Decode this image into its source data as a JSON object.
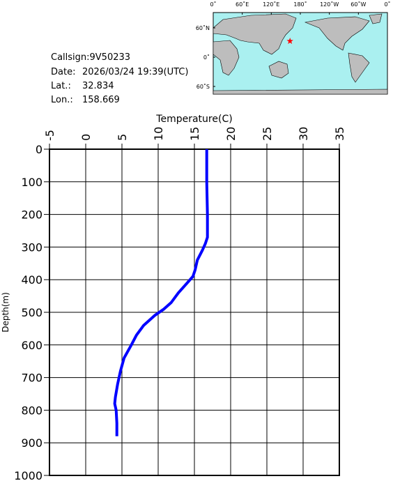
{
  "info": {
    "callsign": "Callsign:9V50233",
    "date_label": "Date:",
    "date": "2026/03/24 19:39(UTC)",
    "lat_label": "Lat.:",
    "lat": 32.834,
    "lon_label": "Lon.:",
    "lon": 158.669
  },
  "map": {
    "lon_ticks": [
      {
        "value": 0,
        "label": "0˚"
      },
      {
        "value": 60,
        "label": "60˚E"
      },
      {
        "value": 120,
        "label": "120˚E"
      },
      {
        "value": 180,
        "label": "180˚"
      },
      {
        "value": 240,
        "label": "120˚W"
      },
      {
        "value": 300,
        "label": "60˚W"
      },
      {
        "value": 360,
        "label": "0˚"
      }
    ],
    "lat_ticks": [
      {
        "value": 60,
        "label": "60˚N"
      },
      {
        "value": 0,
        "label": "0˚"
      },
      {
        "value": -60,
        "label": "60˚S"
      }
    ],
    "marker_color": "#ff0000"
  },
  "chart_data": {
    "type": "line",
    "x_label": "Temperature(C)",
    "y_label": "Depth(m)",
    "x": [
      16.7,
      16.7,
      16.8,
      16.8,
      16.5,
      16.1,
      15.4,
      15.1,
      14.8,
      14.0,
      12.8,
      11.8,
      10.8,
      9.5,
      8.0,
      7.0,
      6.3,
      5.3,
      4.8,
      4.4,
      4.1,
      4.0,
      4.2,
      4.3,
      4.3
    ],
    "values": [
      0,
      100,
      200,
      270,
      290,
      310,
      340,
      370,
      390,
      410,
      440,
      470,
      490,
      510,
      540,
      570,
      600,
      640,
      680,
      720,
      760,
      780,
      800,
      840,
      880
    ],
    "color": "#0000ff",
    "xlim": [
      -5,
      35
    ],
    "xticks": [
      -5,
      0,
      5,
      10,
      15,
      20,
      25,
      30,
      35
    ],
    "ylim": [
      0,
      1000
    ],
    "yticks": [
      0,
      100,
      200,
      300,
      400,
      500,
      600,
      700,
      800,
      900,
      1000
    ],
    "y_reversed": true,
    "grid": true
  }
}
